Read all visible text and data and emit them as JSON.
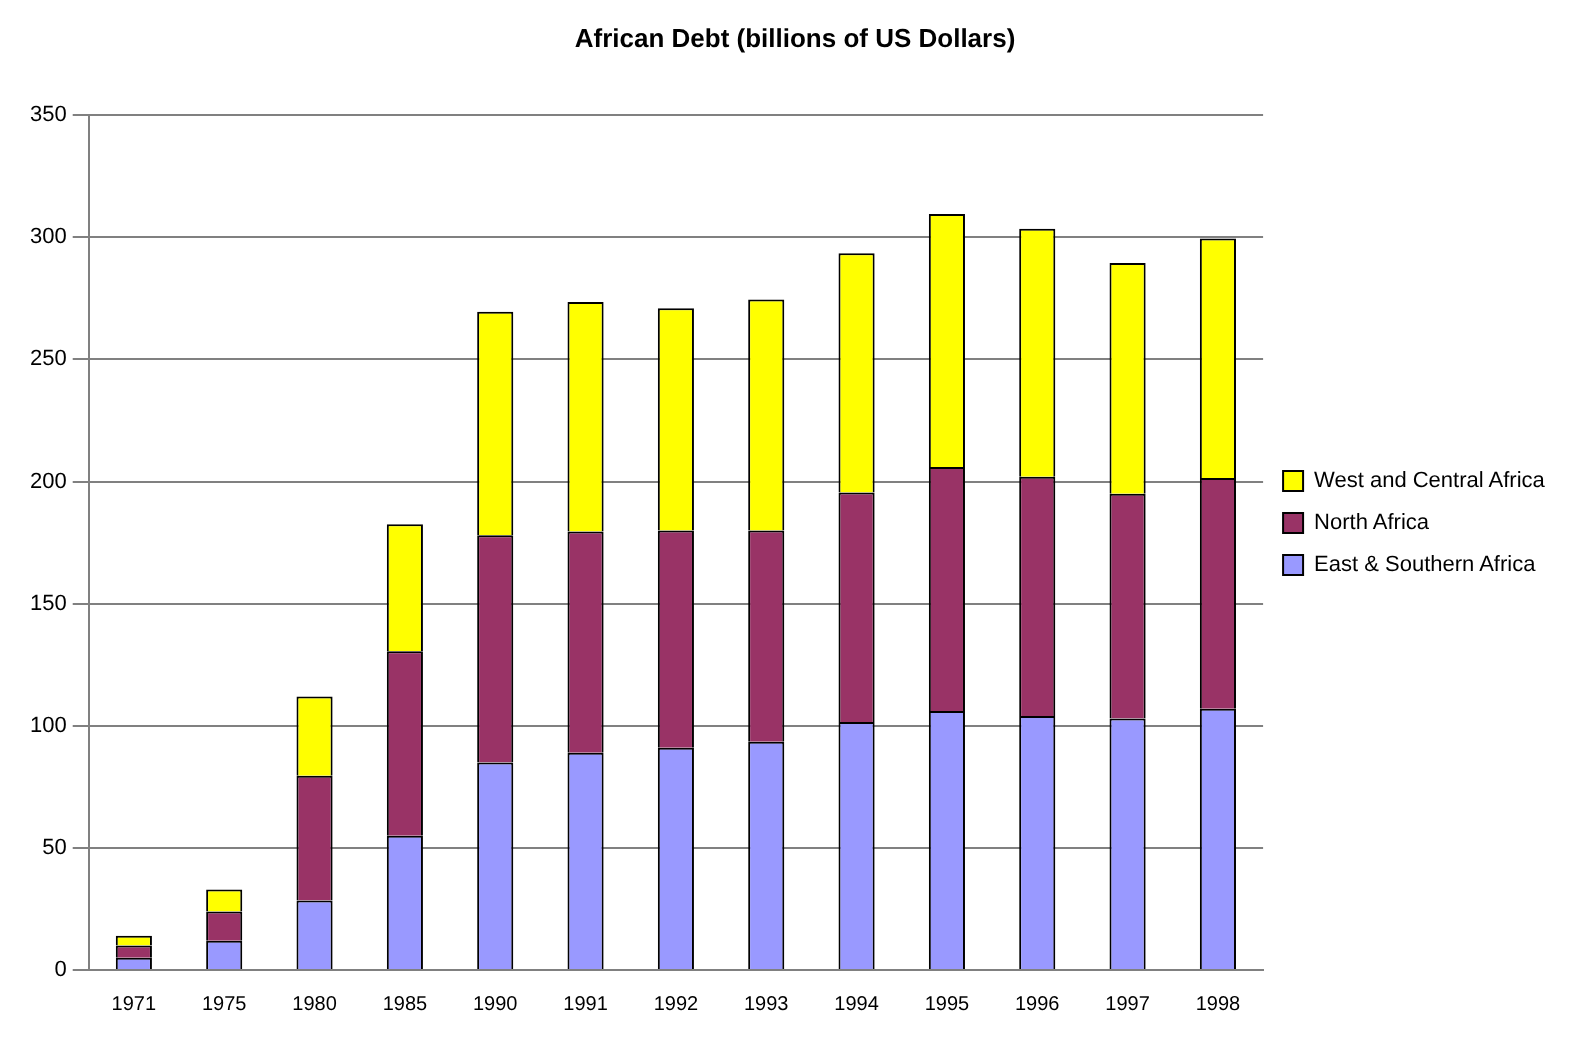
{
  "chart_data": {
    "type": "bar",
    "title": "African Debt (billions of US Dollars)",
    "categories": [
      "1971",
      "1975",
      "1980",
      "1985",
      "1990",
      "1991",
      "1992",
      "1993",
      "1994",
      "1995",
      "1996",
      "1997",
      "1998"
    ],
    "series": [
      {
        "name": "East & Southern Africa",
        "color": "#9999ff",
        "values": [
          5,
          12,
          28.5,
          55,
          85,
          89,
          91,
          93.5,
          101.5,
          106,
          104,
          103,
          107
        ]
      },
      {
        "name": "North Africa",
        "color": "#993366",
        "values": [
          5,
          12,
          51,
          75.5,
          93,
          90.5,
          89,
          86.5,
          94,
          100,
          98,
          92,
          94.5
        ]
      },
      {
        "name": "West and Central Africa",
        "color": "#ffff00",
        "values": [
          4,
          9,
          32.5,
          52,
          91.5,
          94,
          91,
          94.5,
          98,
          103.5,
          101.5,
          94.5,
          98
        ]
      }
    ],
    "stacked": true,
    "ylim": [
      0,
      350
    ],
    "yticks": [
      0,
      50,
      100,
      150,
      200,
      250,
      300,
      350
    ],
    "grid": "y",
    "legend": "right"
  }
}
